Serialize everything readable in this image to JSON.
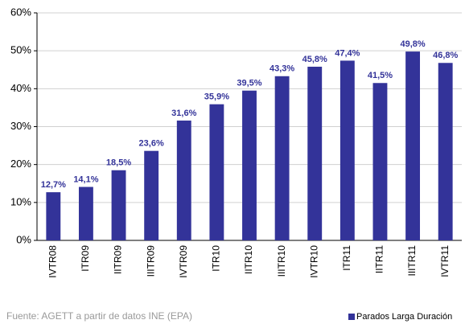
{
  "chart_data": {
    "type": "bar",
    "categories": [
      "IVTR08",
      "ITR09",
      "IITR09",
      "IIITR09",
      "IVTR09",
      "ITR10",
      "IITR10",
      "IIITR10",
      "IVTR10",
      "ITR11",
      "IITR11",
      "IIITR11",
      "IVTR11"
    ],
    "series": [
      {
        "name": "Parados Larga Duración",
        "color": "#333399",
        "values": [
          12.7,
          14.1,
          18.5,
          23.6,
          31.6,
          35.9,
          39.5,
          43.3,
          45.8,
          47.4,
          41.5,
          49.8,
          46.8
        ],
        "value_labels": [
          "12,7%",
          "14,1%",
          "18,5%",
          "23,6%",
          "31,6%",
          "35,9%",
          "39,5%",
          "43,3%",
          "45,8%",
          "47,4%",
          "41,5%",
          "49,8%",
          "46,8%"
        ]
      }
    ],
    "ylim": [
      0,
      60
    ],
    "yticks": [
      {
        "value": 0,
        "label": "0%"
      },
      {
        "value": 10,
        "label": "10%"
      },
      {
        "value": 20,
        "label": "20%"
      },
      {
        "value": 30,
        "label": "30%"
      },
      {
        "value": 40,
        "label": "40%"
      },
      {
        "value": 50,
        "label": "50%"
      },
      {
        "value": 60,
        "label": "60%"
      }
    ],
    "grid": true,
    "legend": "bottom-right",
    "source": "Fuente: AGETT a partir de datos INE (EPA)"
  }
}
